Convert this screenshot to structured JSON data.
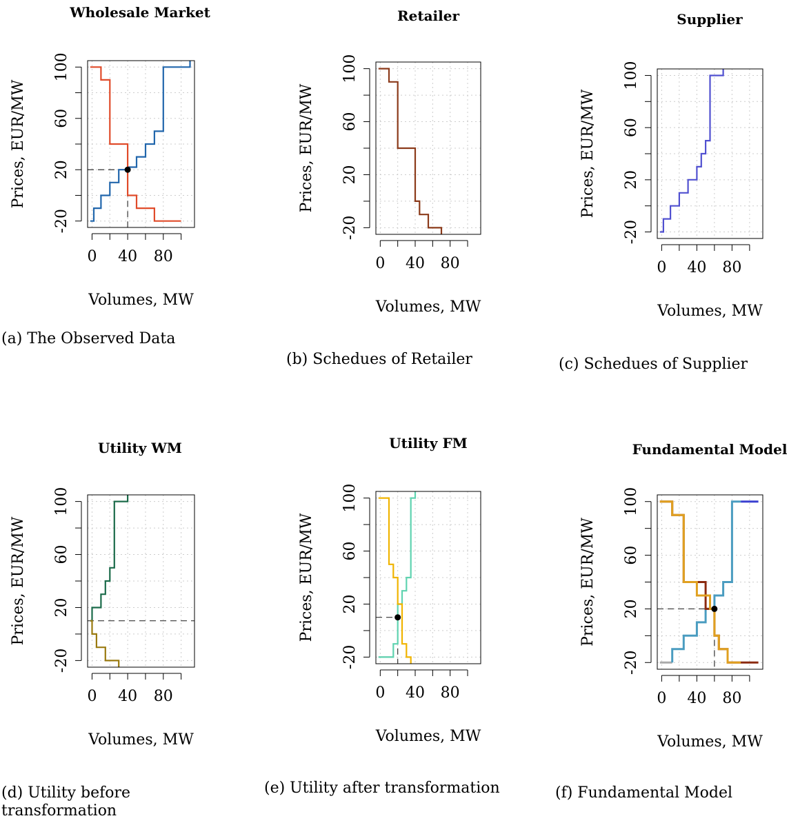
{
  "colors": {
    "supply_blue": "#2166ac",
    "demand_red": "#e04b2a",
    "retailer_brown": "#8b3a1a",
    "supplier_purple": "#5050d0",
    "utility_green": "#1b6b4a",
    "utility_olive": "#9a7a10",
    "fm_yellow": "#f0b400",
    "fm_teal": "#5fd3b0",
    "fm_gray": "#aaaaaa",
    "model_blue": "#4a9cc0",
    "model_orange": "#e0a020",
    "model_darkred": "#8b2a10",
    "model_navy": "#3a40d0",
    "grid": "#cccccc"
  },
  "chart_data": [
    {
      "type": "line",
      "title": "Wholesale Market",
      "caption": "(a) The Observed Data",
      "xlabel": "Volumes, MW",
      "ylabel": "Prices, EUR/MW",
      "xticks": [
        "0",
        "40",
        "80"
      ],
      "yticks": [
        "-20",
        "20",
        "60",
        "100"
      ],
      "xlim": [
        -5,
        115
      ],
      "ylim": [
        -25,
        105
      ],
      "grid": true,
      "equilibrium": {
        "x": 40,
        "y": 20
      },
      "series": [
        {
          "color": "#2166ac",
          "step": true,
          "x": [
            -2,
            2,
            2,
            10,
            10,
            20,
            20,
            30,
            30,
            40,
            40,
            50,
            50,
            60,
            60,
            70,
            70,
            80,
            80,
            110,
            110
          ],
          "y": [
            -20,
            -20,
            -10,
            -10,
            0,
            0,
            10,
            10,
            20,
            20,
            22,
            22,
            30,
            30,
            40,
            40,
            50,
            50,
            100,
            100,
            105
          ]
        },
        {
          "color": "#e04b2a",
          "step": true,
          "x": [
            -2,
            10,
            10,
            20,
            20,
            40,
            40,
            50,
            50,
            70,
            70,
            100
          ],
          "y": [
            100,
            100,
            90,
            90,
            40,
            40,
            0,
            0,
            -10,
            -10,
            -20,
            -20
          ]
        }
      ]
    },
    {
      "type": "line",
      "title": "Retailer",
      "caption": "(b) Schedues of Retailer",
      "xlabel": "Volumes, MW",
      "ylabel": "Prices, EUR/MW",
      "xticks": [
        "0",
        "40",
        "80"
      ],
      "yticks": [
        "-20",
        "20",
        "60",
        "100"
      ],
      "xlim": [
        -5,
        115
      ],
      "ylim": [
        -25,
        105
      ],
      "grid": true,
      "series": [
        {
          "color": "#8b3a1a",
          "step": true,
          "x": [
            -2,
            10,
            10,
            20,
            20,
            40,
            40,
            45,
            45,
            55,
            55,
            70,
            70
          ],
          "y": [
            100,
            100,
            90,
            90,
            40,
            40,
            0,
            0,
            -10,
            -10,
            -20,
            -20,
            -25
          ]
        }
      ]
    },
    {
      "type": "line",
      "title": "Supplier",
      "caption": "(c) Schedues of Supplier",
      "xlabel": "Volumes, MW",
      "ylabel": "Prices, EUR/MW",
      "xticks": [
        "0",
        "40",
        "80"
      ],
      "yticks": [
        "-20",
        "20",
        "60",
        "100"
      ],
      "xlim": [
        -5,
        115
      ],
      "ylim": [
        -25,
        105
      ],
      "grid": true,
      "series": [
        {
          "color": "#5050d0",
          "step": true,
          "x": [
            -2,
            2,
            2,
            10,
            10,
            20,
            20,
            30,
            30,
            40,
            40,
            45,
            45,
            50,
            50,
            55,
            55,
            70,
            70
          ],
          "y": [
            -20,
            -20,
            -10,
            -10,
            0,
            0,
            10,
            10,
            20,
            20,
            30,
            30,
            40,
            40,
            50,
            50,
            100,
            100,
            105
          ]
        }
      ]
    },
    {
      "type": "line",
      "title": "Utility WM",
      "caption": "(d) Utility before transformation",
      "xlabel": "Volumes, MW",
      "ylabel": "Prices, EUR/MW",
      "xticks": [
        "0",
        "40",
        "80"
      ],
      "yticks": [
        "-20",
        "20",
        "60",
        "100"
      ],
      "xlim": [
        -5,
        115
      ],
      "ylim": [
        -25,
        105
      ],
      "grid": true,
      "hline": 10,
      "series": [
        {
          "color": "#1b6b4a",
          "step": true,
          "x": [
            -2,
            0,
            0,
            10,
            10,
            15,
            15,
            20,
            20,
            25,
            25,
            40,
            40
          ],
          "y": [
            10,
            10,
            20,
            20,
            30,
            30,
            40,
            40,
            50,
            50,
            100,
            100,
            105
          ]
        },
        {
          "color": "#9a7a10",
          "step": true,
          "x": [
            -2,
            0,
            0,
            5,
            5,
            15,
            15,
            30,
            30
          ],
          "y": [
            10,
            10,
            0,
            0,
            -10,
            -10,
            -20,
            -20,
            -25
          ]
        }
      ]
    },
    {
      "type": "line",
      "title": "Utility FM",
      "caption": "(e) Utility after transformation",
      "xlabel": "Volumes, MW",
      "ylabel": "Prices, EUR/MW",
      "xticks": [
        "0",
        "40",
        "80"
      ],
      "yticks": [
        "-20",
        "20",
        "60",
        "100"
      ],
      "xlim": [
        -5,
        115
      ],
      "ylim": [
        -25,
        105
      ],
      "grid": true,
      "equilibrium": {
        "x": 20,
        "y": 10
      },
      "series": [
        {
          "color": "#aaaaaa",
          "step": true,
          "x": [
            -2,
            15
          ],
          "y": [
            -20,
            -20
          ]
        },
        {
          "color": "#5fd3b0",
          "step": true,
          "x": [
            -2,
            15,
            15,
            20,
            20,
            25,
            25,
            30,
            30,
            35,
            35,
            40,
            40
          ],
          "y": [
            -20,
            -20,
            -10,
            -10,
            20,
            20,
            30,
            30,
            40,
            40,
            100,
            100,
            105
          ]
        },
        {
          "color": "#f0b400",
          "step": true,
          "x": [
            -2,
            10,
            10,
            15,
            15,
            20,
            20,
            25,
            25,
            30,
            30,
            35,
            35
          ],
          "y": [
            100,
            100,
            50,
            50,
            40,
            40,
            20,
            20,
            -10,
            -10,
            -20,
            -20,
            -25
          ]
        }
      ]
    },
    {
      "type": "line",
      "title": "Fundamental Model",
      "caption": "(f) Fundamental Model",
      "xlabel": "Volumes, MW",
      "ylabel": "Prices, EUR/MW",
      "xticks": [
        "0",
        "40",
        "80"
      ],
      "yticks": [
        "-20",
        "20",
        "60",
        "100"
      ],
      "xlim": [
        -5,
        115
      ],
      "ylim": [
        -25,
        105
      ],
      "grid": true,
      "equilibrium": {
        "x": 60,
        "y": 20
      },
      "series": [
        {
          "color": "#aaaaaa",
          "step": true,
          "width": 3,
          "x": [
            -2,
            12
          ],
          "y": [
            -20,
            -20
          ]
        },
        {
          "color": "#3a40d0",
          "step": true,
          "width": 3,
          "x": [
            90,
            110
          ],
          "y": [
            100,
            100
          ]
        },
        {
          "color": "#4a9cc0",
          "step": true,
          "width": 3,
          "x": [
            12,
            12,
            25,
            25,
            40,
            40,
            50,
            50,
            60,
            60,
            70,
            70,
            80,
            80,
            90
          ],
          "y": [
            -20,
            -10,
            -10,
            0,
            0,
            10,
            10,
            20,
            20,
            30,
            30,
            40,
            40,
            100,
            100
          ]
        },
        {
          "color": "#8b2a10",
          "step": true,
          "width": 3,
          "x": [
            -2,
            12,
            12,
            25,
            25,
            50,
            50,
            60,
            60,
            65,
            65,
            75,
            75,
            110
          ],
          "y": [
            100,
            100,
            90,
            90,
            40,
            40,
            20,
            20,
            0,
            0,
            -10,
            -10,
            -20,
            -20
          ]
        },
        {
          "color": "#e0a020",
          "step": true,
          "width": 3,
          "x": [
            -2,
            12,
            12,
            25,
            25,
            40,
            40,
            55,
            55,
            60,
            60,
            65,
            65,
            75,
            75,
            90
          ],
          "y": [
            100,
            100,
            90,
            90,
            40,
            40,
            30,
            30,
            20,
            20,
            0,
            0,
            -10,
            -10,
            -20,
            -20
          ]
        }
      ]
    }
  ]
}
